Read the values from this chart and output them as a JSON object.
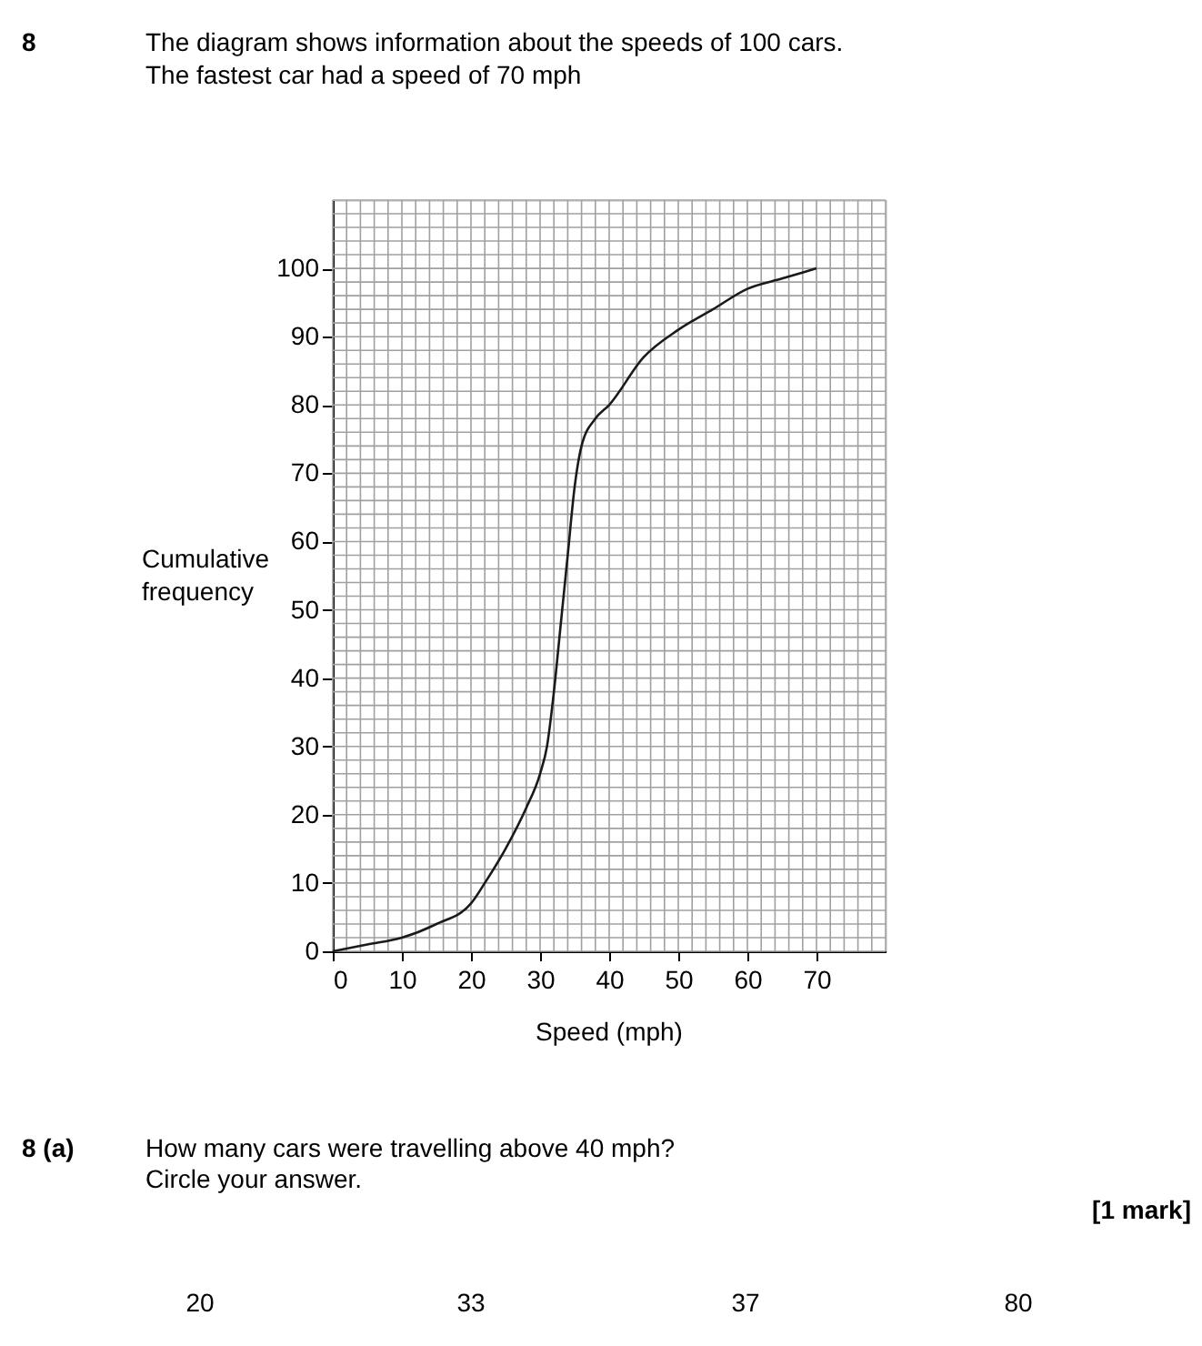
{
  "chart_data": {
    "type": "line",
    "title": "The diagram shows information about the speeds of 100 cars.",
    "subtitle": "The fastest car had a speed of 70 mph",
    "xlabel": "Speed (mph)",
    "ylabel": "Cumulative frequency",
    "x": [
      0,
      5,
      10,
      15,
      20,
      22,
      25,
      28,
      30,
      31,
      32,
      33,
      34,
      35,
      36,
      38,
      40,
      45,
      50,
      55,
      60,
      65,
      70
    ],
    "series": [
      {
        "color": "#1a1a1a",
        "values": [
          0,
          1,
          2,
          4,
          7,
          10,
          15,
          21,
          26,
          30,
          38,
          48,
          58,
          68,
          74,
          78,
          80,
          87,
          91,
          94,
          97,
          98.5,
          100
        ]
      }
    ],
    "xlim": [
      0,
      80
    ],
    "ylim": [
      0,
      110
    ],
    "xticks": [
      0,
      10,
      20,
      30,
      40,
      50,
      60,
      70
    ],
    "yticks": [
      0,
      10,
      20,
      30,
      40,
      50,
      60,
      70,
      80,
      90,
      100
    ],
    "grid": true,
    "marker": "none",
    "line_style": "solid",
    "annotations": [
      "8",
      "8 (a)",
      "How many cars were travelling above 40 mph?",
      "Circle your answer.",
      "[1 mark]",
      "20",
      "33",
      "37",
      "80"
    ]
  }
}
